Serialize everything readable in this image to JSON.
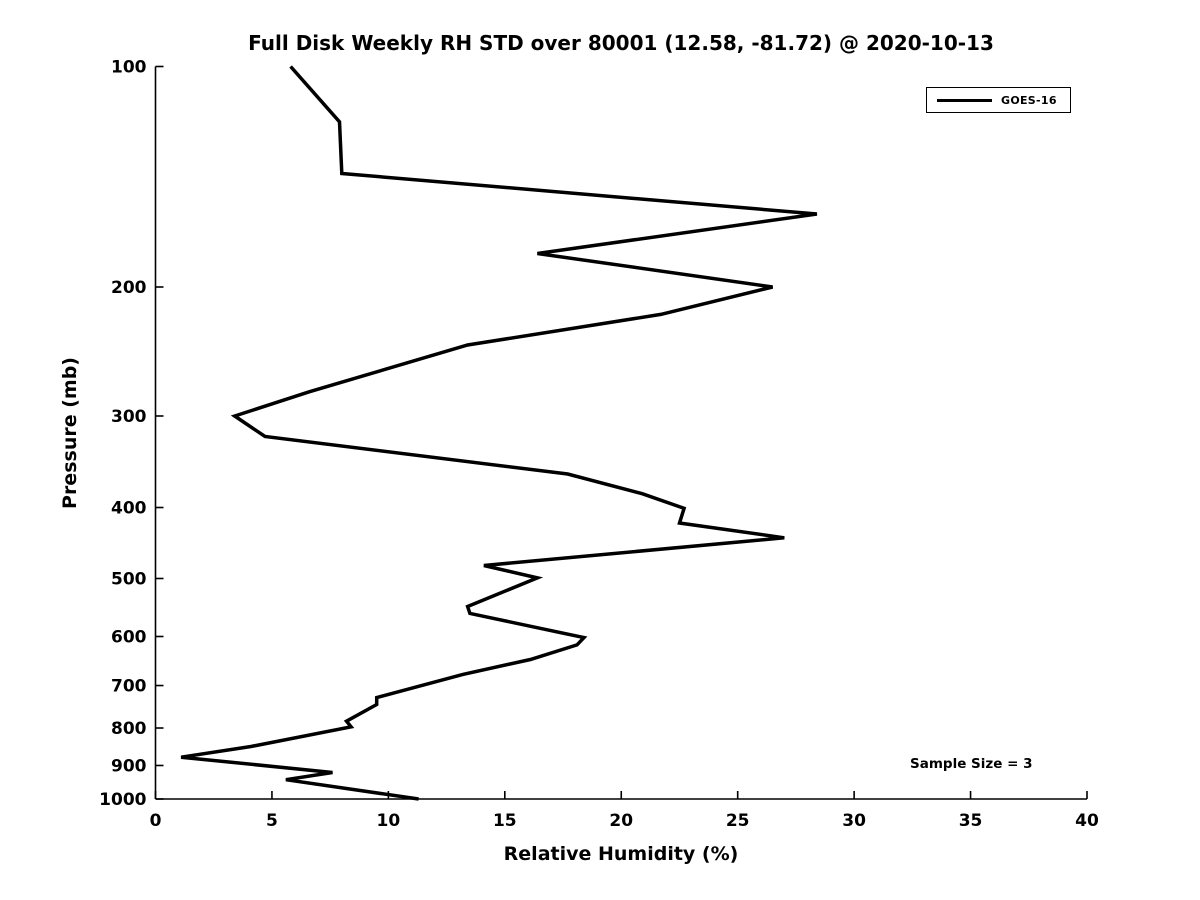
{
  "legend": {
    "label": "GOES-16"
  },
  "annotation": {
    "text": "Sample Size = 3"
  },
  "chart_data": {
    "type": "line",
    "title": "Full Disk Weekly RH STD over 80001 (12.58, -81.72) @ 2020-10-13",
    "xlabel": "Relative Humidity (%)",
    "ylabel": "Pressure (mb)",
    "xlim": [
      0,
      40
    ],
    "ylim": [
      100,
      1000
    ],
    "yscale": "log",
    "y_direction": "inverted-pressure-down",
    "grid": false,
    "legend_position": "upper-right",
    "xticks": [
      0,
      5,
      10,
      15,
      20,
      25,
      30,
      35,
      40
    ],
    "yticks": [
      100,
      200,
      300,
      400,
      500,
      600,
      700,
      800,
      900,
      1000
    ],
    "series": [
      {
        "name": "GOES-16",
        "color": "#000000",
        "points_rh_pressure": [
          [
            5.8,
            100
          ],
          [
            7.9,
            119
          ],
          [
            8.0,
            140
          ],
          [
            28.4,
            159
          ],
          [
            16.4,
            180
          ],
          [
            26.5,
            200
          ],
          [
            21.7,
            218
          ],
          [
            13.4,
            240
          ],
          [
            6.6,
            278
          ],
          [
            3.4,
            300
          ],
          [
            4.7,
            320
          ],
          [
            17.7,
            360
          ],
          [
            20.9,
            383
          ],
          [
            22.7,
            401
          ],
          [
            22.5,
            420
          ],
          [
            27.0,
            440
          ],
          [
            14.1,
            480
          ],
          [
            16.4,
            499
          ],
          [
            13.4,
            546
          ],
          [
            13.5,
            558
          ],
          [
            18.4,
            602
          ],
          [
            18.1,
            616
          ],
          [
            16.1,
            645
          ],
          [
            13.2,
            676
          ],
          [
            9.7,
            724
          ],
          [
            9.5,
            727
          ],
          [
            9.5,
            743
          ],
          [
            8.2,
            783
          ],
          [
            8.4,
            797
          ],
          [
            4.1,
            848
          ],
          [
            1.1,
            877
          ],
          [
            7.6,
            920
          ],
          [
            5.6,
            941
          ],
          [
            11.3,
            1000
          ]
        ]
      }
    ]
  }
}
